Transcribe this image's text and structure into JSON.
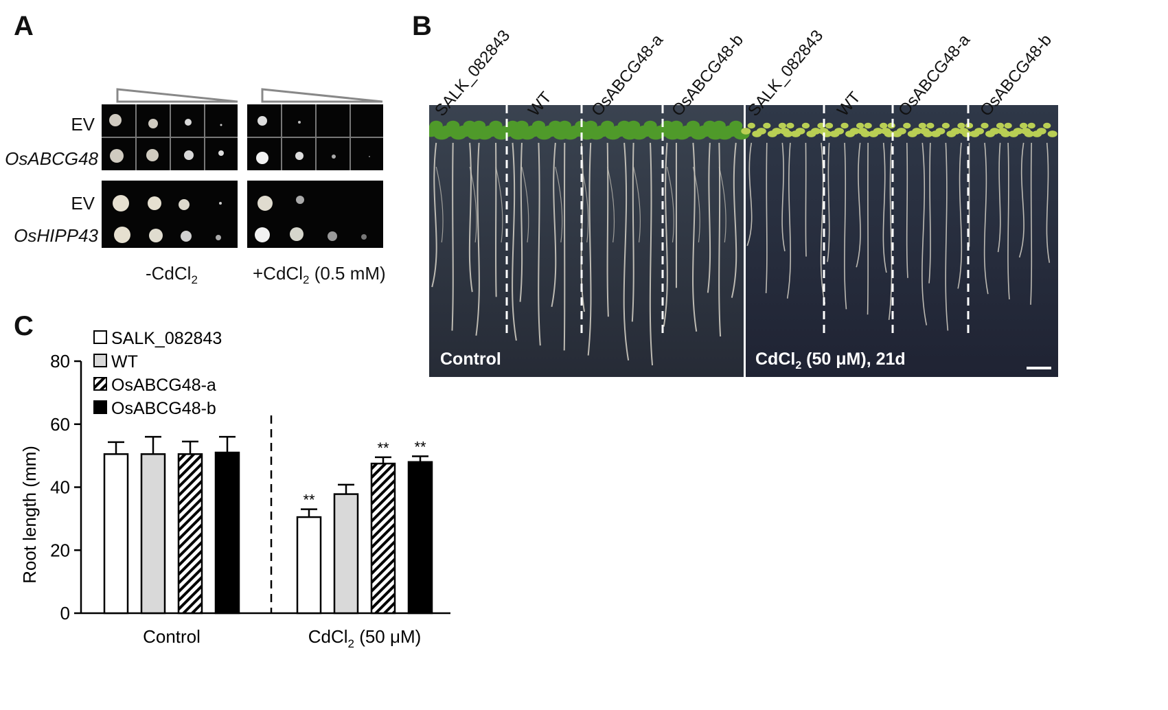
{
  "panels": {
    "a": "A",
    "b": "B",
    "c": "C"
  },
  "panel_a": {
    "rows_top": [
      "EV",
      "OsABCG48"
    ],
    "rows_bottom": [
      "EV",
      "OsHIPP43"
    ],
    "cond_minus": "-CdCl",
    "cond_minus_sub": "2",
    "cond_plus": "+CdCl",
    "cond_plus_sub": "2",
    "cond_plus_suffix": "(0.5 mM)"
  },
  "panel_b": {
    "lines": [
      "SALK_082843",
      "WT",
      "OsABCG48-a",
      "OsABCG48-b",
      "SALK_082843",
      "WT",
      "OsABCG48-a",
      "OsABCG48-b"
    ],
    "control_label": "Control",
    "treat_label_pre": "CdCl",
    "treat_label_sub": "2",
    "treat_label_post": " (50 μM), 21d"
  },
  "chart_data": {
    "type": "bar",
    "ylabel": "Root length (mm)",
    "ylim": [
      0,
      80
    ],
    "yticks": [
      0,
      20,
      40,
      60,
      80
    ],
    "groups": [
      {
        "label": "Control",
        "label_sub": "",
        "label_post": ""
      },
      {
        "label": "CdCl",
        "label_sub": "2",
        "label_post": " (50 μM)"
      }
    ],
    "series": [
      {
        "name": "SALK_082843",
        "values": [
          50.5,
          30.5
        ],
        "errors": [
          3.8,
          2.5
        ],
        "sig": [
          "",
          "**"
        ],
        "fill": "white"
      },
      {
        "name": "WT",
        "values": [
          50.5,
          37.8
        ],
        "errors": [
          5.5,
          3.0
        ],
        "sig": [
          "",
          ""
        ],
        "fill": "#d9d9d9"
      },
      {
        "name": "OsABCG48-a",
        "values": [
          50.5,
          47.5
        ],
        "errors": [
          4.0,
          2.0
        ],
        "sig": [
          "",
          "**"
        ],
        "fill": "hatch"
      },
      {
        "name": "OsABCG48-b",
        "values": [
          51.0,
          48.0
        ],
        "errors": [
          5.0,
          1.8
        ],
        "sig": [
          "",
          "**"
        ],
        "fill": "black"
      }
    ]
  }
}
